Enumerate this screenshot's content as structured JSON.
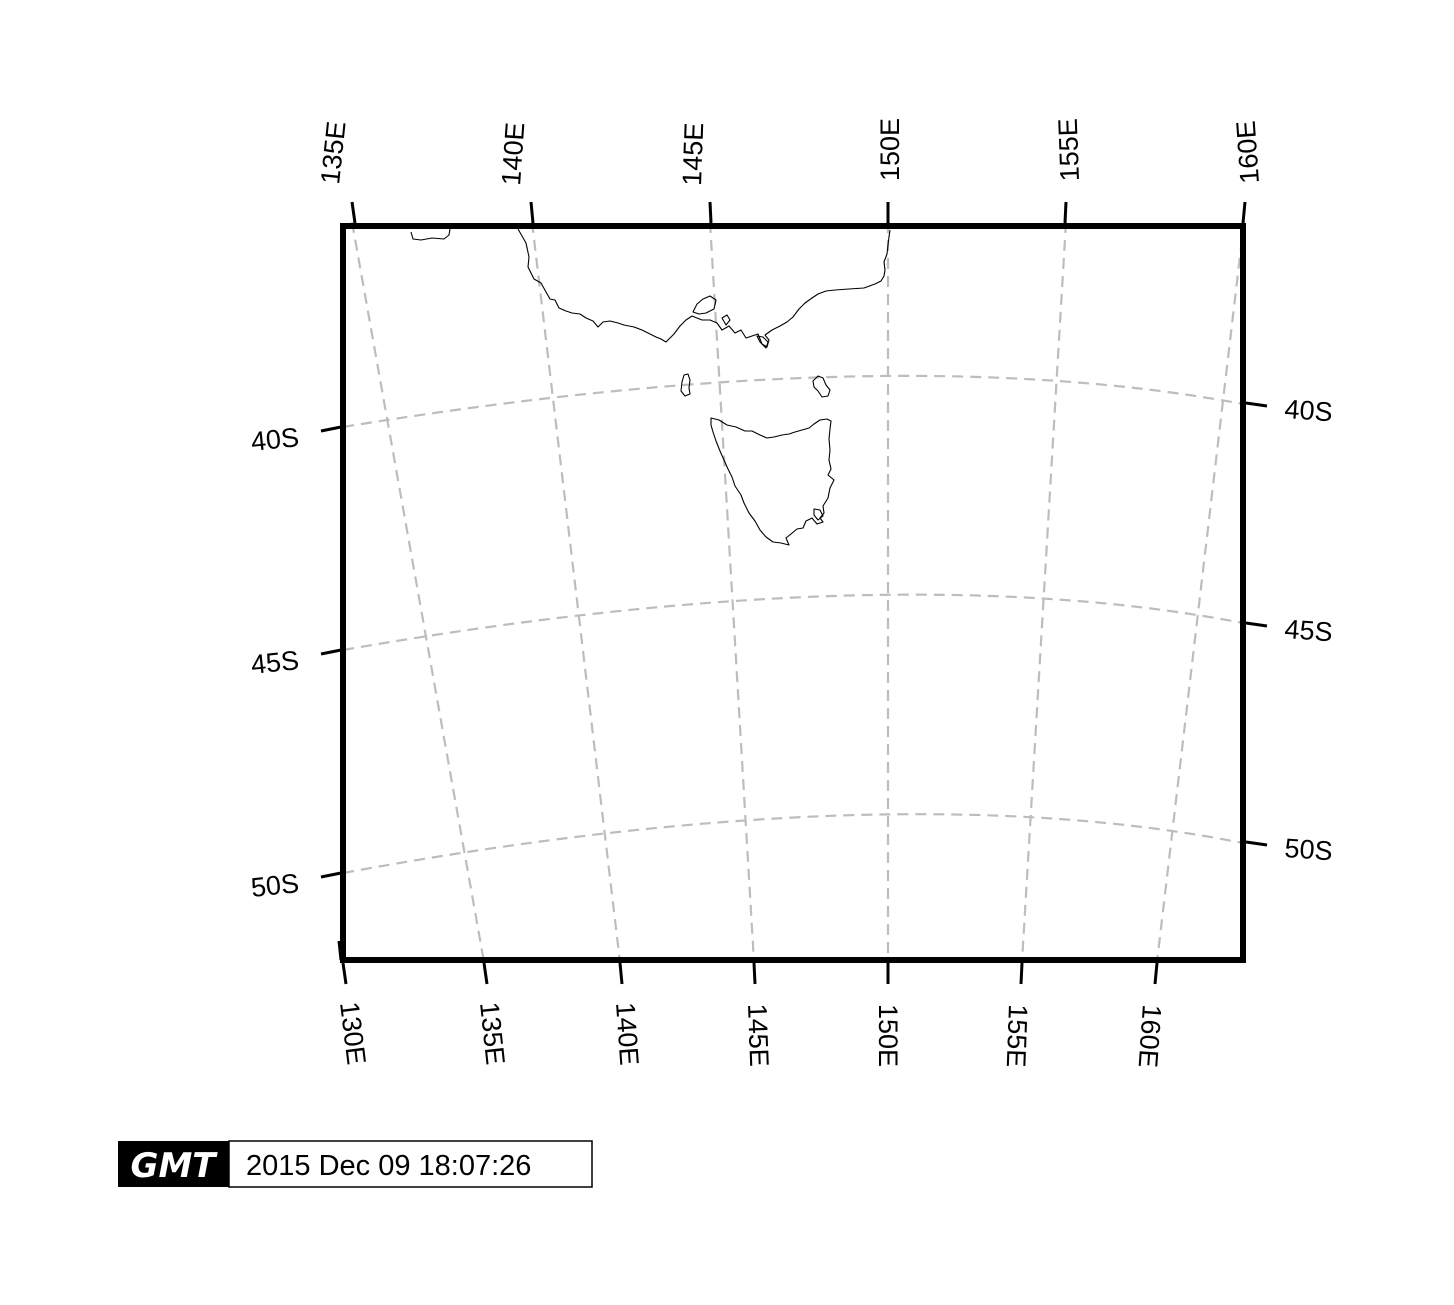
{
  "map": {
    "top_longitude_labels": [
      "135E",
      "140E",
      "145E",
      "150E",
      "155E",
      "160E"
    ],
    "bottom_longitude_labels": [
      "130E",
      "135E",
      "140E",
      "145E",
      "150E",
      "155E",
      "160E"
    ],
    "left_latitude_labels": [
      "40S",
      "45S",
      "50S"
    ],
    "right_latitude_labels": [
      "40S",
      "45S",
      "50S"
    ],
    "gridline_color": "#bdbdbd",
    "frame_color": "#000000",
    "coastline_color": "#000000"
  },
  "timestamp": {
    "logo": "GMT",
    "text": "2015 Dec 09 18:07:26"
  }
}
